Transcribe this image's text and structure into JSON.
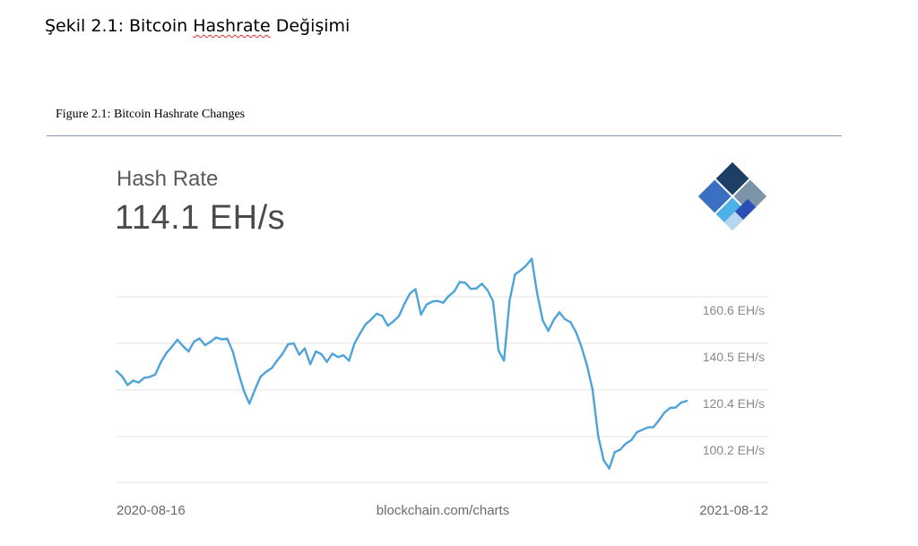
{
  "document": {
    "heading_prefix": "Şekil 2.1: Bitcoin ",
    "heading_misspelled": "Hashrate",
    "heading_suffix": " Değişimi",
    "caption": "Figure 2.1: Bitcoin Hashrate Changes"
  },
  "colors": {
    "line": "#4ea3d9",
    "grid": "#e3e3e3",
    "rule": "#8a93b8"
  },
  "logo": {
    "icon": "blockchain-logo-icon"
  },
  "chart_data": {
    "type": "line",
    "title": "Hash Rate",
    "current_value": "114.1 EH/s",
    "x_start_label": "2020-08-16",
    "x_end_label": "2021-08-12",
    "source": "blockchain.com/charts",
    "y_ticks": [
      {
        "value": 160.6,
        "label": "160.6 EH/s"
      },
      {
        "value": 140.5,
        "label": "140.5 EH/s"
      },
      {
        "value": 120.4,
        "label": "120.4 EH/s"
      },
      {
        "value": 100.2,
        "label": "100.2 EH/s"
      }
    ],
    "ylim": [
      80,
      180
    ],
    "grid": true,
    "x": [
      "2020-08-16",
      "2020-08-20",
      "2020-08-23",
      "2020-08-27",
      "2020-08-31",
      "2020-09-03",
      "2020-09-06",
      "2020-09-10",
      "2020-09-13",
      "2020-09-17",
      "2020-09-20",
      "2020-09-24",
      "2020-09-27",
      "2020-09-30",
      "2020-10-04",
      "2020-10-08",
      "2020-10-11",
      "2020-10-15",
      "2020-10-18",
      "2020-10-22",
      "2020-10-25",
      "2020-10-28",
      "2020-11-01",
      "2020-11-05",
      "2020-11-08",
      "2020-11-12",
      "2020-11-15",
      "2020-11-19",
      "2020-11-22",
      "2020-11-26",
      "2020-11-29",
      "2020-12-03",
      "2020-12-06",
      "2020-12-10",
      "2020-12-13",
      "2020-12-17",
      "2020-12-20",
      "2020-12-23",
      "2020-12-27",
      "2020-12-31",
      "2021-01-03",
      "2021-01-07",
      "2021-01-10",
      "2021-01-14",
      "2021-01-17",
      "2021-01-21",
      "2021-01-24",
      "2021-01-27",
      "2021-01-31",
      "2021-02-04",
      "2021-02-07",
      "2021-02-11",
      "2021-02-14",
      "2021-02-18",
      "2021-02-21",
      "2021-02-25",
      "2021-02-28",
      "2021-03-04",
      "2021-03-07",
      "2021-03-11",
      "2021-03-14",
      "2021-03-18",
      "2021-03-21",
      "2021-03-25",
      "2021-03-28",
      "2021-04-01",
      "2021-04-04",
      "2021-04-08",
      "2021-04-11",
      "2021-04-15",
      "2021-04-18",
      "2021-04-22",
      "2021-04-25",
      "2021-04-29",
      "2021-05-02",
      "2021-05-06",
      "2021-05-09",
      "2021-05-13",
      "2021-05-16",
      "2021-05-20",
      "2021-05-23",
      "2021-05-27",
      "2021-05-30",
      "2021-06-03",
      "2021-06-06",
      "2021-06-10",
      "2021-06-13",
      "2021-06-17",
      "2021-06-20",
      "2021-06-24",
      "2021-06-27",
      "2021-07-01",
      "2021-07-04",
      "2021-07-08",
      "2021-07-11",
      "2021-07-15",
      "2021-07-18",
      "2021-07-22",
      "2021-07-25",
      "2021-07-29",
      "2021-08-01",
      "2021-08-05",
      "2021-08-08",
      "2021-08-12"
    ],
    "series": [
      {
        "values": [
          128.5,
          126.2,
          122.5,
          124.4,
          123.6,
          125.6,
          126.0,
          127.0,
          132.3,
          136.3,
          139.0,
          142.0,
          139.3,
          137.0,
          141.2,
          142.6,
          139.7,
          141.2,
          143.0,
          142.2,
          142.5,
          136.9,
          128.0,
          120.0,
          114.5,
          120.5,
          126.0,
          128.1,
          129.7,
          133.0,
          136.0,
          140.1,
          140.5,
          135.6,
          138.3,
          131.5,
          137.0,
          135.8,
          132.5,
          136.0,
          134.6,
          135.3,
          133.0,
          140.5,
          144.8,
          148.7,
          150.8,
          153.3,
          152.3,
          148.1,
          149.9,
          152.2,
          157.5,
          162.0,
          163.9,
          152.9,
          157.2,
          158.5,
          158.8,
          158.0,
          160.9,
          162.9,
          167.0,
          166.6,
          164.0,
          164.2,
          166.2,
          163.5,
          158.7,
          137.4,
          133.0,
          158.9,
          170.3,
          172.0,
          174.1,
          177.0,
          161.8,
          150.3,
          145.9,
          150.7,
          153.9,
          150.9,
          149.7,
          145.3,
          138.9,
          130.8,
          120.5,
          100.6,
          90.0,
          86.4,
          93.5,
          94.6,
          97.2,
          98.7,
          102.1,
          103.2,
          104.2,
          104.3,
          107.3,
          110.6,
          112.6,
          112.8,
          114.9,
          115.6
        ]
      }
    ]
  }
}
